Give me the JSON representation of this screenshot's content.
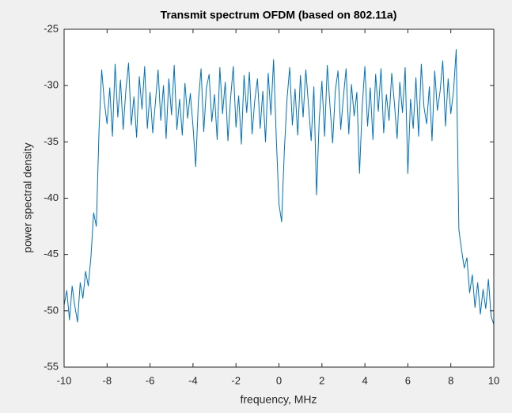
{
  "chart_data": {
    "type": "line",
    "title": "Transmit spectrum OFDM (based on 802.11a)",
    "xlabel": "frequency, MHz",
    "ylabel": "power spectral density",
    "xlim": [
      -10,
      10
    ],
    "ylim": [
      -55,
      -25
    ],
    "xticks": [
      -10,
      -8,
      -6,
      -4,
      -2,
      0,
      2,
      4,
      6,
      8,
      10
    ],
    "yticks": [
      -55,
      -50,
      -45,
      -40,
      -35,
      -30,
      -25
    ],
    "grid": false,
    "series": [
      {
        "color": "#0072bd",
        "x": [
          -10,
          -9.875,
          -9.75,
          -9.625,
          -9.5,
          -9.375,
          -9.25,
          -9.125,
          -9,
          -8.875,
          -8.75,
          -8.625,
          -8.5,
          -8.375,
          -8.25,
          -8.125,
          -8,
          -7.875,
          -7.75,
          -7.625,
          -7.5,
          -7.375,
          -7.25,
          -7.125,
          -7,
          -6.875,
          -6.75,
          -6.625,
          -6.5,
          -6.375,
          -6.25,
          -6.125,
          -6,
          -5.875,
          -5.75,
          -5.625,
          -5.5,
          -5.375,
          -5.25,
          -5.125,
          -5,
          -4.875,
          -4.75,
          -4.625,
          -4.5,
          -4.375,
          -4.25,
          -4.125,
          -4,
          -3.875,
          -3.75,
          -3.625,
          -3.5,
          -3.375,
          -3.25,
          -3.125,
          -3,
          -2.875,
          -2.75,
          -2.625,
          -2.5,
          -2.375,
          -2.25,
          -2.125,
          -2,
          -1.875,
          -1.75,
          -1.625,
          -1.5,
          -1.375,
          -1.25,
          -1.125,
          -1,
          -0.875,
          -0.75,
          -0.625,
          -0.5,
          -0.375,
          -0.25,
          -0.125,
          0,
          0.125,
          0.25,
          0.375,
          0.5,
          0.625,
          0.75,
          0.875,
          1,
          1.125,
          1.25,
          1.375,
          1.5,
          1.625,
          1.75,
          1.875,
          2,
          2.125,
          2.25,
          2.375,
          2.5,
          2.625,
          2.75,
          2.875,
          3,
          3.125,
          3.25,
          3.375,
          3.5,
          3.625,
          3.75,
          3.875,
          4,
          4.125,
          4.25,
          4.375,
          4.5,
          4.625,
          4.75,
          4.875,
          5,
          5.125,
          5.25,
          5.375,
          5.5,
          5.625,
          5.75,
          5.875,
          6,
          6.125,
          6.25,
          6.375,
          6.5,
          6.625,
          6.75,
          6.875,
          7,
          7.125,
          7.25,
          7.375,
          7.5,
          7.625,
          7.75,
          7.875,
          8,
          8.125,
          8.25,
          8.375,
          8.5,
          8.625,
          8.75,
          8.875,
          9,
          9.125,
          9.25,
          9.375,
          9.5,
          9.625,
          9.75,
          9.875,
          10
        ],
        "values": [
          -49.5,
          -48.2,
          -50.8,
          -47.8,
          -49.6,
          -51,
          -47.5,
          -48.9,
          -46.5,
          -47.8,
          -45.2,
          -41.3,
          -42.5,
          -34,
          -28.6,
          -31.5,
          -33.4,
          -30.2,
          -34.5,
          -28.1,
          -32.8,
          -29.5,
          -33.9,
          -30.4,
          -28,
          -33.5,
          -31,
          -34.6,
          -29.2,
          -32.1,
          -28.3,
          -33.8,
          -30.6,
          -34.2,
          -31.5,
          -28.6,
          -33.1,
          -30,
          -34.7,
          -29.4,
          -32.6,
          -28.2,
          -33.9,
          -31.2,
          -34.4,
          -29.8,
          -32.9,
          -30.7,
          -33.6,
          -37.2,
          -31.4,
          -28.5,
          -34.1,
          -30.2,
          -29,
          -33.2,
          -30.8,
          -34.8,
          -28.4,
          -32.5,
          -29.7,
          -34.9,
          -31.1,
          -28.3,
          -33.7,
          -30.9,
          -35.2,
          -29.1,
          -32.4,
          -28.8,
          -34.3,
          -31.3,
          -29.4,
          -33.8,
          -30.5,
          -35,
          -28.9,
          -32.6,
          -27.7,
          -34.6,
          -40.5,
          -42.1,
          -35.8,
          -31.2,
          -28.4,
          -33.5,
          -30.3,
          -34.4,
          -29.1,
          -32.8,
          -28.6,
          -31.7,
          -34.9,
          -30.1,
          -39.7,
          -33,
          -29.6,
          -34.5,
          -28.2,
          -31.8,
          -35.1,
          -30.4,
          -28.7,
          -33.9,
          -31,
          -28.5,
          -34.3,
          -29.9,
          -32.7,
          -30.6,
          -37.8,
          -31.9,
          -28.3,
          -33.6,
          -30.2,
          -34.8,
          -29,
          -32.3,
          -28.5,
          -34.2,
          -30.8,
          -33.1,
          -28.9,
          -31.6,
          -34.7,
          -29.7,
          -32.4,
          -28.4,
          -37.8,
          -31.2,
          -33.8,
          -29.3,
          -34.5,
          -28.1,
          -31.9,
          -33.4,
          -30.1,
          -34.9,
          -28.7,
          -32.2,
          -30.5,
          -27.8,
          -33.6,
          -29.4,
          -32.5,
          -30.5,
          -26.8,
          -42.8,
          -44.6,
          -46.2,
          -45.3,
          -48.4,
          -46.8,
          -49.7,
          -47.5,
          -50.3,
          -48.1,
          -49.8,
          -47.2,
          -50.5,
          -51.2
        ]
      }
    ]
  }
}
